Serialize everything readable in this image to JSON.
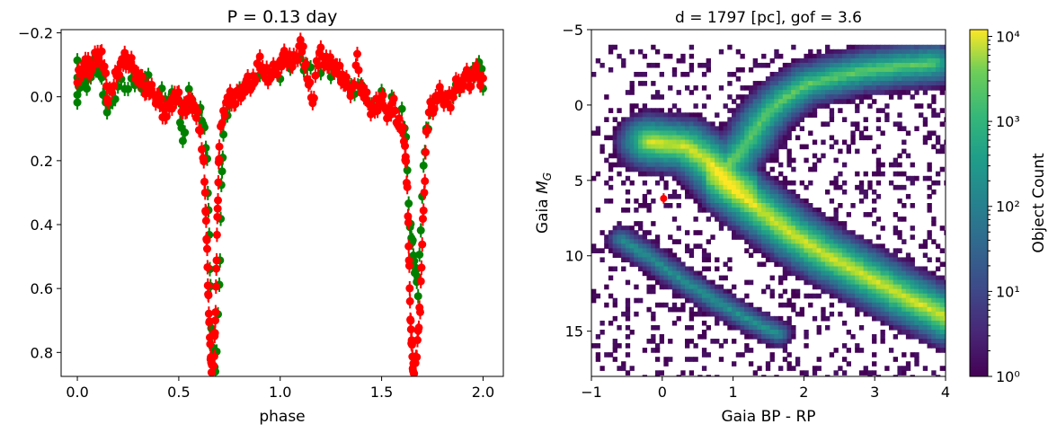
{
  "chart_data": [
    {
      "type": "scatter",
      "title": "P = 0.13 day",
      "xlabel": "phase",
      "ylabel": "",
      "xlim": [
        -0.08,
        2.1
      ],
      "ylim": [
        0.875,
        -0.21
      ],
      "y_inverted": true,
      "x_ticks": [
        "0.0",
        "0.5",
        "1.0",
        "1.5",
        "2.0"
      ],
      "y_ticks": [
        "−0.2",
        "0.0",
        "0.2",
        "0.4",
        "0.6",
        "0.8"
      ],
      "grid": false,
      "series": [
        {
          "color": "#008000",
          "marker": "circle-with-errorbar",
          "points": [
            [
              0.0,
              -0.09
            ],
            [
              0.0,
              0.0
            ],
            [
              0.02,
              -0.06
            ],
            [
              0.04,
              -0.04
            ],
            [
              0.06,
              -0.05
            ],
            [
              0.08,
              -0.1
            ],
            [
              0.1,
              -0.1
            ],
            [
              0.12,
              -0.06
            ],
            [
              0.14,
              0.03
            ],
            [
              0.16,
              0.05
            ],
            [
              0.2,
              -0.05
            ],
            [
              0.25,
              -0.03
            ],
            [
              0.3,
              -0.04
            ],
            [
              0.35,
              -0.05
            ],
            [
              0.4,
              -0.03
            ],
            [
              0.45,
              0.0
            ],
            [
              0.5,
              0.01
            ],
            [
              0.52,
              0.15
            ],
            [
              0.55,
              0.0
            ],
            [
              0.6,
              0.03
            ],
            [
              0.62,
              0.08
            ],
            [
              0.64,
              0.2
            ],
            [
              0.65,
              0.45
            ],
            [
              0.66,
              0.7
            ],
            [
              0.67,
              0.8
            ],
            [
              0.68,
              0.86
            ],
            [
              0.7,
              0.6
            ],
            [
              0.71,
              0.3
            ],
            [
              0.72,
              0.1
            ],
            [
              0.75,
              0.02
            ],
            [
              0.8,
              -0.02
            ],
            [
              0.9,
              -0.05
            ],
            [
              1.0,
              -0.08
            ],
            [
              1.05,
              -0.1
            ],
            [
              1.1,
              -0.12
            ],
            [
              1.15,
              -0.08
            ],
            [
              1.2,
              -0.05
            ],
            [
              1.25,
              -0.08
            ],
            [
              1.3,
              -0.06
            ],
            [
              1.35,
              -0.03
            ],
            [
              1.4,
              -0.02
            ],
            [
              1.45,
              0.0
            ],
            [
              1.5,
              -0.03
            ],
            [
              1.55,
              0.0
            ],
            [
              1.6,
              0.05
            ],
            [
              1.62,
              0.15
            ],
            [
              1.64,
              0.39
            ],
            [
              1.65,
              0.45
            ],
            [
              1.66,
              0.52
            ],
            [
              1.67,
              0.56
            ],
            [
              1.68,
              0.6
            ],
            [
              1.7,
              0.3
            ],
            [
              1.72,
              0.1
            ],
            [
              1.75,
              0.03
            ],
            [
              1.8,
              0.02
            ],
            [
              1.85,
              -0.02
            ],
            [
              1.9,
              -0.04
            ],
            [
              1.95,
              -0.08
            ],
            [
              1.98,
              -0.09
            ],
            [
              2.0,
              -0.05
            ]
          ]
        },
        {
          "color": "#ff0000",
          "marker": "circle-with-errorbar",
          "points": [
            [
              0.0,
              -0.05
            ],
            [
              0.02,
              -0.08
            ],
            [
              0.04,
              -0.1
            ],
            [
              0.06,
              -0.09
            ],
            [
              0.08,
              -0.11
            ],
            [
              0.1,
              -0.14
            ],
            [
              0.12,
              -0.13
            ],
            [
              0.14,
              -0.05
            ],
            [
              0.15,
              0.0
            ],
            [
              0.18,
              -0.04
            ],
            [
              0.2,
              -0.08
            ],
            [
              0.22,
              -0.1
            ],
            [
              0.24,
              -0.12
            ],
            [
              0.26,
              -0.11
            ],
            [
              0.28,
              -0.09
            ],
            [
              0.3,
              -0.06
            ],
            [
              0.32,
              -0.04
            ],
            [
              0.34,
              -0.03
            ],
            [
              0.36,
              -0.02
            ],
            [
              0.38,
              0.0
            ],
            [
              0.4,
              0.01
            ],
            [
              0.42,
              0.04
            ],
            [
              0.44,
              0.05
            ],
            [
              0.46,
              0.02
            ],
            [
              0.48,
              0.0
            ],
            [
              0.5,
              0.01
            ],
            [
              0.52,
              0.03
            ],
            [
              0.54,
              0.04
            ],
            [
              0.56,
              0.01
            ],
            [
              0.58,
              0.05
            ],
            [
              0.6,
              0.08
            ],
            [
              0.62,
              0.18
            ],
            [
              0.63,
              0.3
            ],
            [
              0.635,
              0.4
            ],
            [
              0.64,
              0.5
            ],
            [
              0.645,
              0.6
            ],
            [
              0.65,
              0.7
            ],
            [
              0.655,
              0.78
            ],
            [
              0.66,
              0.85
            ],
            [
              0.665,
              0.87
            ],
            [
              0.675,
              0.8
            ],
            [
              0.68,
              0.7
            ],
            [
              0.685,
              0.55
            ],
            [
              0.69,
              0.4
            ],
            [
              0.695,
              0.25
            ],
            [
              0.7,
              0.15
            ],
            [
              0.72,
              0.05
            ],
            [
              0.74,
              0.02
            ],
            [
              0.76,
              0.0
            ],
            [
              0.78,
              0.01
            ],
            [
              0.8,
              -0.02
            ],
            [
              0.82,
              -0.02
            ],
            [
              0.84,
              -0.04
            ],
            [
              0.86,
              -0.05
            ],
            [
              0.88,
              -0.06
            ],
            [
              0.9,
              -0.12
            ],
            [
              0.92,
              -0.06
            ],
            [
              0.94,
              -0.07
            ],
            [
              0.96,
              -0.08
            ],
            [
              0.98,
              -0.09
            ],
            [
              1.0,
              -0.1
            ],
            [
              1.02,
              -0.12
            ],
            [
              1.04,
              -0.13
            ],
            [
              1.06,
              -0.1
            ],
            [
              1.08,
              -0.12
            ],
            [
              1.1,
              -0.16
            ],
            [
              1.12,
              -0.12
            ],
            [
              1.14,
              -0.05
            ],
            [
              1.16,
              0.02
            ],
            [
              1.18,
              -0.1
            ],
            [
              1.2,
              -0.13
            ],
            [
              1.22,
              -0.12
            ],
            [
              1.24,
              -0.1
            ],
            [
              1.26,
              -0.1
            ],
            [
              1.28,
              -0.08
            ],
            [
              1.3,
              -0.07
            ],
            [
              1.32,
              -0.05
            ],
            [
              1.34,
              -0.03
            ],
            [
              1.36,
              -0.02
            ],
            [
              1.38,
              -0.11
            ],
            [
              1.4,
              -0.03
            ],
            [
              1.42,
              0.0
            ],
            [
              1.44,
              0.03
            ],
            [
              1.46,
              0.05
            ],
            [
              1.48,
              0.02
            ],
            [
              1.5,
              0.0
            ],
            [
              1.52,
              0.04
            ],
            [
              1.54,
              0.05
            ],
            [
              1.56,
              0.03
            ],
            [
              1.58,
              0.07
            ],
            [
              1.6,
              0.1
            ],
            [
              1.615,
              0.16
            ],
            [
              1.62,
              0.22
            ],
            [
              1.63,
              0.35
            ],
            [
              1.635,
              0.5
            ],
            [
              1.64,
              0.64
            ],
            [
              1.645,
              0.74
            ],
            [
              1.65,
              0.8
            ],
            [
              1.655,
              0.84
            ],
            [
              1.66,
              0.86
            ],
            [
              1.67,
              0.82
            ],
            [
              1.68,
              0.75
            ],
            [
              1.69,
              0.65
            ],
            [
              1.7,
              0.45
            ],
            [
              1.71,
              0.3
            ],
            [
              1.72,
              0.12
            ],
            [
              1.74,
              0.04
            ],
            [
              1.76,
              0.02
            ],
            [
              1.78,
              -0.01
            ],
            [
              1.8,
              0.0
            ],
            [
              1.82,
              0.02
            ],
            [
              1.84,
              0.01
            ],
            [
              1.86,
              -0.03
            ],
            [
              1.88,
              -0.05
            ],
            [
              1.9,
              -0.04
            ],
            [
              1.92,
              -0.06
            ],
            [
              1.94,
              -0.05
            ],
            [
              1.96,
              -0.08
            ],
            [
              1.98,
              -0.06
            ],
            [
              2.0,
              -0.04
            ]
          ]
        }
      ]
    },
    {
      "type": "heatmap",
      "title": "d = 1797 [pc], gof = 3.6",
      "xlabel": "Gaia BP - RP",
      "ylabel": "Gaia M_G",
      "xlim": [
        -1,
        4
      ],
      "ylim": [
        18,
        -5
      ],
      "y_inverted": true,
      "x_ticks": [
        "−1",
        "0",
        "1",
        "2",
        "3",
        "4"
      ],
      "y_ticks": [
        "−5",
        "0",
        "5",
        "10",
        "15"
      ],
      "colorscale": "viridis",
      "colorbar": {
        "label": "Object Count",
        "scale": "log",
        "range": [
          1,
          12000
        ],
        "ticks": [
          "10⁰",
          "10¹",
          "10²",
          "10³",
          "10⁴"
        ]
      },
      "density_ridges": [
        {
          "name": "main-sequence",
          "path": [
            [
              -0.2,
              2.3
            ],
            [
              0.3,
              2.6
            ],
            [
              0.6,
              3.5
            ],
            [
              0.8,
              4.5
            ],
            [
              1.0,
              5.5
            ],
            [
              1.4,
              7.0
            ],
            [
              1.8,
              8.4
            ],
            [
              2.2,
              9.6
            ],
            [
              2.6,
              10.6
            ],
            [
              3.0,
              11.6
            ],
            [
              3.4,
              12.6
            ],
            [
              3.8,
              13.5
            ],
            [
              4.0,
              14.0
            ]
          ]
        },
        {
          "name": "red-giant-branch",
          "path": [
            [
              0.8,
              4.2
            ],
            [
              1.0,
              3.3
            ],
            [
              1.2,
              2.2
            ],
            [
              1.35,
              1.0
            ],
            [
              1.5,
              0.2
            ],
            [
              1.7,
              -0.6
            ],
            [
              2.0,
              -1.5
            ],
            [
              2.4,
              -2.0
            ],
            [
              2.8,
              -2.4
            ],
            [
              3.3,
              -2.7
            ],
            [
              3.8,
              -2.9
            ]
          ]
        },
        {
          "name": "white-dwarf-sequence",
          "path": [
            [
              -0.6,
              8.8
            ],
            [
              -0.2,
              10.0
            ],
            [
              0.2,
              11.3
            ],
            [
              0.6,
              12.5
            ],
            [
              1.0,
              13.6
            ],
            [
              1.4,
              14.6
            ],
            [
              1.6,
              15.0
            ]
          ]
        }
      ],
      "marked_star": {
        "x": 0.02,
        "y": 6.2,
        "y_err": 0.35,
        "color": "#ff0000"
      }
    }
  ]
}
